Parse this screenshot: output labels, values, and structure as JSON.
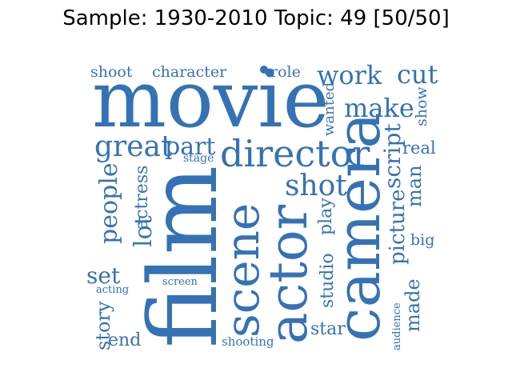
{
  "title": "Sample: 1930-2010 Topic: 49 [50/50]",
  "colors": {
    "word": "#3572b5",
    "background": "#ffffff"
  },
  "words": {
    "movie": "movie",
    "film": "film",
    "camera": "camera",
    "actor": "actor",
    "scene": "scene",
    "director": "director",
    "make": "make",
    "work": "work",
    "cut": "cut",
    "great": "great",
    "part": "part",
    "shot": "shot",
    "people": "people",
    "lot": "lot",
    "actress": "actress",
    "picture": "picture",
    "script": "script",
    "man": "man",
    "show": "show",
    "wanted": "wanted",
    "real": "real",
    "shoot": "shoot",
    "character": "character",
    "role": "role",
    "stage": "stage",
    "set": "set",
    "acting": "acting",
    "screen": "screen",
    "story": "story",
    "end": "end",
    "shooting": "shooting",
    "star": "star",
    "studio": "studio",
    "play": "play",
    "big": "big",
    "made": "made",
    "audience": "audience"
  }
}
